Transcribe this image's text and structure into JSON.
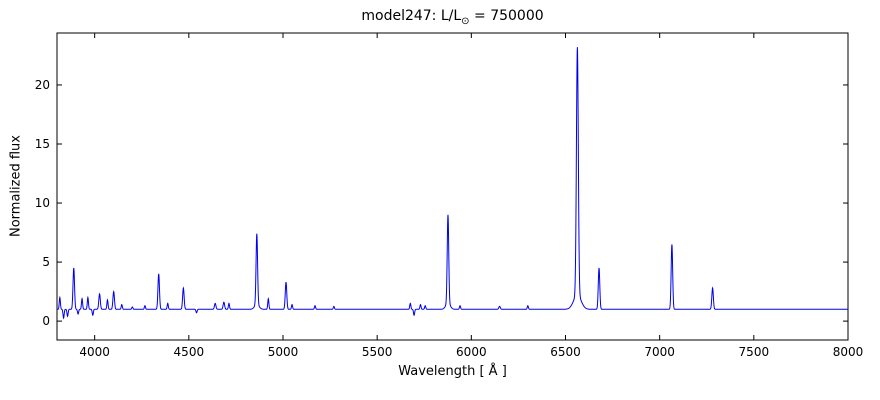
{
  "chart_data": {
    "type": "line",
    "title": {
      "prefix": "model247: L/L",
      "sub": "⊙",
      "suffix": " = 750000"
    },
    "xlabel": "Wavelength [ Å ]",
    "ylabel": "Normalized flux",
    "xlim": [
      3800,
      8000
    ],
    "ylim": [
      -1.6,
      24.4
    ],
    "xticks": [
      4000,
      4500,
      5000,
      5500,
      6000,
      6500,
      7000,
      7500,
      8000
    ],
    "yticks": [
      0,
      5,
      10,
      15,
      20
    ],
    "line_color": "#0000ee",
    "axis_color": "#000000",
    "continuum": 1.0,
    "lines": [
      {
        "c": 3815,
        "a": 1.0,
        "w": 3
      },
      {
        "c": 3835,
        "a": -0.75,
        "w": 3
      },
      {
        "c": 3856,
        "a": -0.6,
        "w": 3
      },
      {
        "c": 3889,
        "a": 3.5,
        "w": 4
      },
      {
        "c": 3912,
        "a": -0.4,
        "w": 3
      },
      {
        "c": 3933,
        "a": 0.9,
        "w": 3
      },
      {
        "c": 3964,
        "a": 1.0,
        "w": 3
      },
      {
        "c": 3990,
        "a": -0.5,
        "w": 3
      },
      {
        "c": 4026,
        "a": 1.3,
        "w": 4
      },
      {
        "c": 4068,
        "a": 0.8,
        "w": 3
      },
      {
        "c": 4101,
        "a": 1.5,
        "w": 4
      },
      {
        "c": 4144,
        "a": 0.4,
        "w": 3
      },
      {
        "c": 4200,
        "a": 0.2,
        "w": 3
      },
      {
        "c": 4267,
        "a": 0.3,
        "w": 3
      },
      {
        "c": 4340,
        "a": 3.0,
        "w": 4
      },
      {
        "c": 4388,
        "a": 0.5,
        "w": 3
      },
      {
        "c": 4471,
        "a": 1.8,
        "w": 4
      },
      {
        "c": 4541,
        "a": -0.3,
        "w": 3
      },
      {
        "c": 4640,
        "a": 0.5,
        "w": 4
      },
      {
        "c": 4686,
        "a": 0.6,
        "w": 4
      },
      {
        "c": 4713,
        "a": 0.5,
        "w": 3
      },
      {
        "c": 4861,
        "a": 6.0,
        "w": 4
      },
      {
        "c": 4861,
        "a": 0.4,
        "w": 12
      },
      {
        "c": 4922,
        "a": 0.9,
        "w": 3
      },
      {
        "c": 5016,
        "a": 2.3,
        "w": 4
      },
      {
        "c": 5048,
        "a": 0.4,
        "w": 3
      },
      {
        "c": 5170,
        "a": 0.3,
        "w": 3
      },
      {
        "c": 5270,
        "a": 0.25,
        "w": 3
      },
      {
        "c": 5676,
        "a": 0.5,
        "w": 3
      },
      {
        "c": 5696,
        "a": -0.5,
        "w": 3
      },
      {
        "c": 5730,
        "a": 0.4,
        "w": 3
      },
      {
        "c": 5755,
        "a": 0.3,
        "w": 3
      },
      {
        "c": 5876,
        "a": 7.5,
        "w": 4
      },
      {
        "c": 5876,
        "a": 0.5,
        "w": 12
      },
      {
        "c": 5940,
        "a": 0.3,
        "w": 3
      },
      {
        "c": 6150,
        "a": 0.25,
        "w": 4
      },
      {
        "c": 6300,
        "a": 0.3,
        "w": 3
      },
      {
        "c": 6563,
        "a": 21.0,
        "w": 5
      },
      {
        "c": 6563,
        "a": 1.2,
        "w": 20
      },
      {
        "c": 6678,
        "a": 3.5,
        "w": 4
      },
      {
        "c": 7065,
        "a": 5.5,
        "w": 4
      },
      {
        "c": 7281,
        "a": 1.8,
        "w": 4
      }
    ]
  }
}
